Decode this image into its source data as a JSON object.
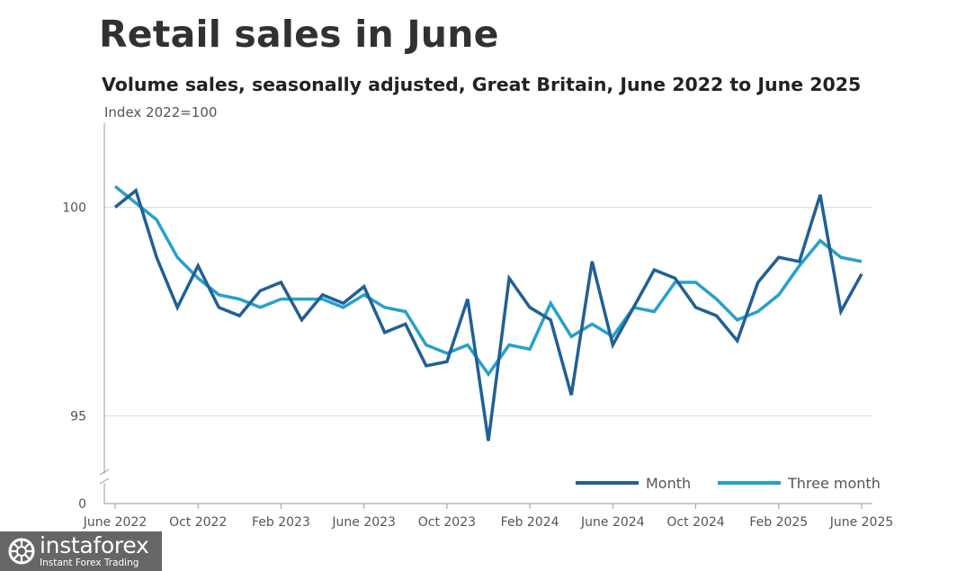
{
  "chart_data": {
    "type": "line",
    "title": "Retail sales in June",
    "subtitle": "Volume sales, seasonally adjusted, Great Britain, June 2022 to June 2025",
    "ylabel": "Index 2022=100",
    "xlabel": "",
    "y_ticks": [
      "0",
      "95",
      "100"
    ],
    "x_tick_labels": [
      "June 2022",
      "Oct 2022",
      "Feb 2023",
      "June 2023",
      "Oct 2023",
      "Feb 2024",
      "June 2024",
      "Oct 2024",
      "Feb 2025",
      "June 2025"
    ],
    "x": [
      "Jun 2022",
      "Jul 2022",
      "Aug 2022",
      "Sep 2022",
      "Oct 2022",
      "Nov 2022",
      "Dec 2022",
      "Jan 2023",
      "Feb 2023",
      "Mar 2023",
      "Apr 2023",
      "May 2023",
      "Jun 2023",
      "Jul 2023",
      "Aug 2023",
      "Sep 2023",
      "Oct 2023",
      "Nov 2023",
      "Dec 2023",
      "Jan 2024",
      "Feb 2024",
      "Mar 2024",
      "Apr 2024",
      "May 2024",
      "Jun 2024",
      "Jul 2024",
      "Aug 2024",
      "Sep 2024",
      "Oct 2024",
      "Nov 2024",
      "Dec 2024",
      "Jan 2025",
      "Feb 2025",
      "Mar 2025",
      "Apr 2025",
      "May 2025",
      "Jun 2025"
    ],
    "ylim": [
      93.6,
      101.8
    ],
    "axis_break": true,
    "grid": "horizontal",
    "legend_position": "bottom-right",
    "series": [
      {
        "name": "Month",
        "color": "#206095",
        "values": [
          100.0,
          100.4,
          98.8,
          97.6,
          98.6,
          97.6,
          97.4,
          98.0,
          98.2,
          97.3,
          97.9,
          97.7,
          98.1,
          97.0,
          97.2,
          96.2,
          96.3,
          97.8,
          94.4,
          98.3,
          97.6,
          97.3,
          95.5,
          98.7,
          96.7,
          97.6,
          98.5,
          98.3,
          97.6,
          97.4,
          96.8,
          98.2,
          98.8,
          98.7,
          100.3,
          97.5,
          98.4
        ]
      },
      {
        "name": "Three month",
        "color": "#27A0CC",
        "values": [
          100.5,
          100.1,
          99.7,
          98.8,
          98.3,
          97.9,
          97.8,
          97.6,
          97.8,
          97.8,
          97.8,
          97.6,
          97.9,
          97.6,
          97.5,
          96.7,
          96.5,
          96.7,
          96.0,
          96.7,
          96.6,
          97.7,
          96.9,
          97.2,
          96.9,
          97.6,
          97.5,
          98.2,
          98.2,
          97.8,
          97.3,
          97.5,
          97.9,
          98.6,
          99.2,
          98.8,
          98.7
        ]
      }
    ]
  },
  "watermark": {
    "brand": "instaforex",
    "tagline": "Instant Forex Trading"
  }
}
